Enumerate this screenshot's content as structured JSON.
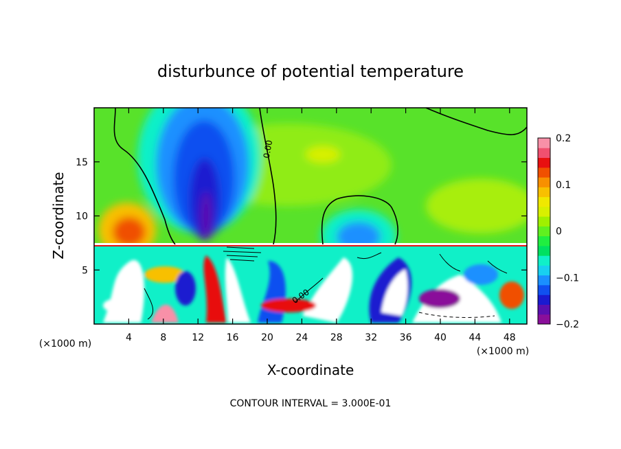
{
  "chart_data": {
    "type": "heatmap",
    "title": "disturbunce of potential temperature",
    "xlabel": "X-coordinate",
    "ylabel": "Z-coordinate",
    "x_unit_label": "(×1000 m)",
    "footer": "CONTOUR INTERVAL = 3.000E-01",
    "xlim": [
      0,
      50
    ],
    "ylim": [
      0,
      20
    ],
    "x_ticks": [
      4,
      8,
      12,
      16,
      20,
      24,
      28,
      32,
      36,
      40,
      44,
      48
    ],
    "y_ticks": [
      5,
      10,
      15
    ],
    "contour_labels": [
      "0.00",
      "0.00"
    ],
    "colorbar": {
      "min": -0.2,
      "max": 0.2,
      "tick_labels": [
        "0.2",
        "0.1",
        "0",
        "-0.1",
        "-0.2"
      ],
      "tick_values": [
        0.2,
        0.1,
        0,
        -0.1,
        -0.2
      ],
      "colors": [
        "#8a0f9a",
        "#5a10b0",
        "#1a1ad0",
        "#1050f0",
        "#1a90ff",
        "#18d0f0",
        "#10f0c8",
        "#00e060",
        "#20ee40",
        "#60f020",
        "#a0f000",
        "#d8f000",
        "#f0e800",
        "#f8c000",
        "#f89000",
        "#f05000",
        "#e81010",
        "#f05070",
        "#f890a8"
      ]
    },
    "features": [
      {
        "description": "cold plume",
        "x": 13,
        "z_top": 19,
        "value": -0.2
      },
      {
        "description": "warm lobe",
        "x": 5,
        "z": 9,
        "value": 0.15
      },
      {
        "description": "cold dome",
        "x": 30,
        "z": 9,
        "value": -0.12
      },
      {
        "description": "warm patch",
        "x": 26,
        "z": 15.5,
        "value": 0.06
      }
    ]
  }
}
